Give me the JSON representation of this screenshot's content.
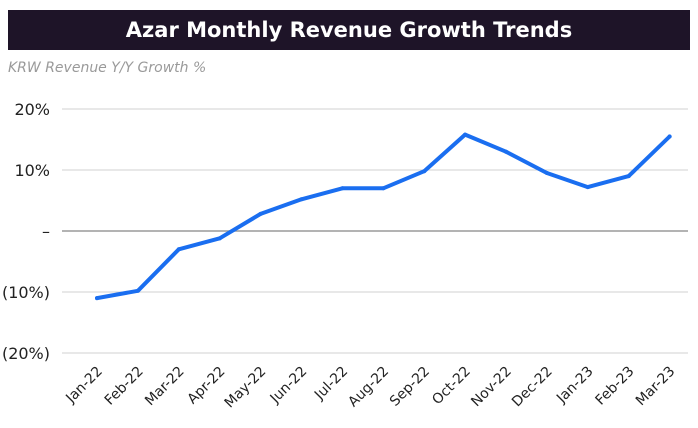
{
  "title": "Azar Monthly Revenue Growth Trends",
  "subtitle": "KRW Revenue Y/Y Growth %",
  "colors": {
    "title_bg": "#1e1428",
    "line": "#1a6ef0",
    "grid": "#d0d0d0",
    "zero_line": "#9a9a9a"
  },
  "chart_data": {
    "type": "line",
    "title": "Azar Monthly Revenue Growth Trends",
    "subtitle": "KRW Revenue Y/Y Growth %",
    "categories": [
      "Jan-22",
      "Feb-22",
      "Mar-22",
      "Apr-22",
      "May-22",
      "Jun-22",
      "Jul-22",
      "Aug-22",
      "Sep-22",
      "Oct-22",
      "Nov-22",
      "Dec-22",
      "Jan-23",
      "Feb-23",
      "Mar-23"
    ],
    "series": [
      {
        "values": [
          -11,
          -9.8,
          -3,
          -1.2,
          2.8,
          5.2,
          7,
          7,
          9.8,
          15.8,
          13,
          9.5,
          7.2,
          9,
          15.5
        ]
      }
    ],
    "ylim": [
      -20,
      20
    ],
    "yticks": [
      -20,
      -10,
      0,
      10,
      20
    ],
    "ytick_labels": [
      "(20%)",
      "(10%)",
      "–",
      "10%",
      "20%"
    ],
    "grid": true,
    "legend": "none"
  }
}
